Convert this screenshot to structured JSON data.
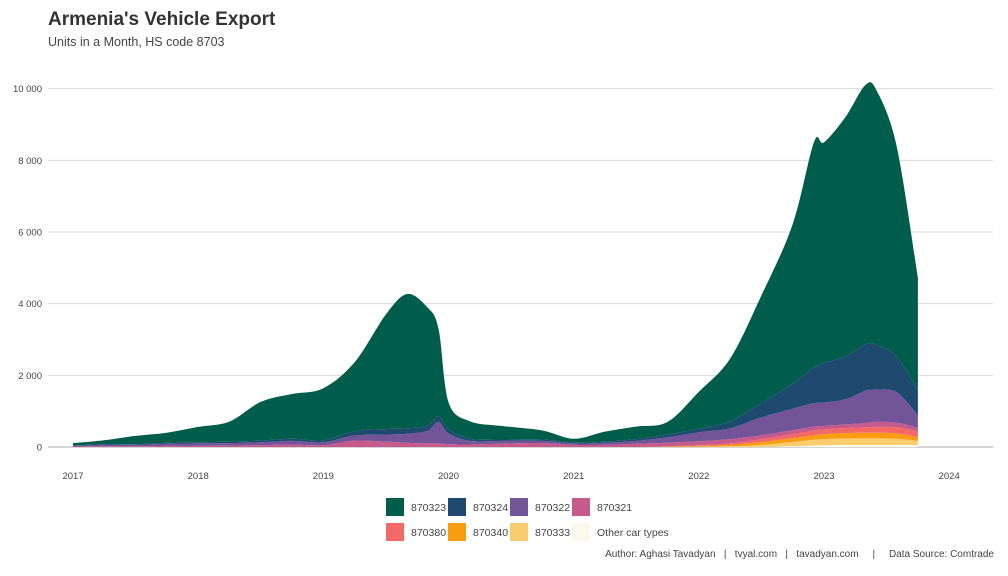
{
  "title": "Armenia's Vehicle Export",
  "subtitle": "Units in a Month, HS code 8703",
  "caption": "Author: Aghasi Tavadyan   |   tvyal.com   |   tavadyan.com     |     Data Source: Comtrade",
  "legend": [
    {
      "name": "870323",
      "color": "#005c4b"
    },
    {
      "name": "870324",
      "color": "#1e4a70"
    },
    {
      "name": "870322",
      "color": "#735499"
    },
    {
      "name": "870321",
      "color": "#c65a8d"
    },
    {
      "name": "870380",
      "color": "#f46868"
    },
    {
      "name": "870340",
      "color": "#f99d10"
    },
    {
      "name": "870333",
      "color": "#f9cd6e"
    },
    {
      "name": "Other car types",
      "color": "#fbf8ec"
    }
  ],
  "chart_data": {
    "type": "area",
    "stacked": true,
    "title": "Armenia's Vehicle Export",
    "subtitle": "Units in a Month, HS code 8703",
    "xlabel": "",
    "ylabel": "",
    "x_ticks": [
      "2017",
      "2018",
      "2019",
      "2020",
      "2021",
      "2022",
      "2023",
      "2024"
    ],
    "y_ticks": [
      "0",
      "2 000",
      "4 000",
      "6 000",
      "8 000",
      "10 000"
    ],
    "xlim": [
      2016.8,
      2024.35
    ],
    "ylim": [
      0,
      10800
    ],
    "grid": true,
    "legend_position": "bottom",
    "x": [
      2017.0,
      2017.25,
      2017.5,
      2017.75,
      2018.0,
      2018.25,
      2018.5,
      2018.75,
      2019.0,
      2019.25,
      2019.5,
      2019.67,
      2019.83,
      2019.92,
      2020.0,
      2020.17,
      2020.42,
      2020.75,
      2021.0,
      2021.25,
      2021.5,
      2021.75,
      2022.0,
      2022.25,
      2022.5,
      2022.75,
      2022.92,
      2023.0,
      2023.17,
      2023.33,
      2023.42,
      2023.58,
      2023.75
    ],
    "series": [
      {
        "name": "Other car types",
        "values": [
          0,
          0,
          0,
          0,
          0,
          0,
          0,
          0,
          0,
          0,
          0,
          0,
          0,
          0,
          0,
          0,
          0,
          0,
          0,
          0,
          0,
          0,
          0,
          0,
          0,
          20,
          40,
          50,
          60,
          60,
          60,
          60,
          50
        ]
      },
      {
        "name": "870333",
        "values": [
          0,
          0,
          0,
          0,
          0,
          0,
          0,
          0,
          0,
          0,
          0,
          0,
          0,
          0,
          0,
          0,
          0,
          0,
          0,
          0,
          0,
          0,
          10,
          20,
          60,
          120,
          160,
          170,
          180,
          180,
          180,
          170,
          120
        ]
      },
      {
        "name": "870340",
        "values": [
          0,
          0,
          0,
          0,
          0,
          0,
          0,
          0,
          0,
          0,
          0,
          0,
          0,
          0,
          0,
          0,
          0,
          0,
          0,
          0,
          0,
          10,
          20,
          40,
          80,
          110,
          130,
          140,
          150,
          160,
          160,
          150,
          110
        ]
      },
      {
        "name": "870380",
        "values": [
          0,
          0,
          0,
          0,
          0,
          0,
          0,
          0,
          0,
          0,
          0,
          0,
          0,
          0,
          0,
          0,
          0,
          0,
          0,
          0,
          0,
          10,
          20,
          40,
          80,
          110,
          130,
          130,
          140,
          150,
          160,
          170,
          160
        ]
      },
      {
        "name": "870321",
        "values": [
          10,
          20,
          20,
          30,
          30,
          40,
          50,
          70,
          50,
          180,
          150,
          120,
          100,
          100,
          80,
          70,
          90,
          110,
          60,
          60,
          90,
          100,
          110,
          120,
          110,
          110,
          110,
          100,
          100,
          120,
          140,
          130,
          100
        ]
      },
      {
        "name": "870322",
        "values": [
          20,
          40,
          40,
          60,
          70,
          70,
          80,
          100,
          80,
          140,
          200,
          250,
          350,
          600,
          300,
          100,
          80,
          60,
          40,
          60,
          80,
          150,
          250,
          300,
          500,
          600,
          650,
          650,
          700,
          900,
          900,
          850,
          350
        ]
      },
      {
        "name": "870324",
        "values": [
          10,
          20,
          20,
          30,
          30,
          40,
          50,
          60,
          60,
          120,
          150,
          150,
          150,
          150,
          120,
          60,
          40,
          40,
          20,
          30,
          50,
          80,
          100,
          200,
          400,
          700,
          1000,
          1100,
          1200,
          1300,
          1250,
          1000,
          700
        ]
      },
      {
        "name": "870323",
        "values": [
          70,
          110,
          230,
          280,
          430,
          560,
          1080,
          1250,
          1450,
          1930,
          3200,
          3750,
          3300,
          2450,
          750,
          490,
          380,
          250,
          110,
          280,
          350,
          350,
          1030,
          1750,
          3000,
          4450,
          6290,
          6160,
          6670,
          7230,
          7100,
          5870,
          3130
        ]
      }
    ]
  }
}
